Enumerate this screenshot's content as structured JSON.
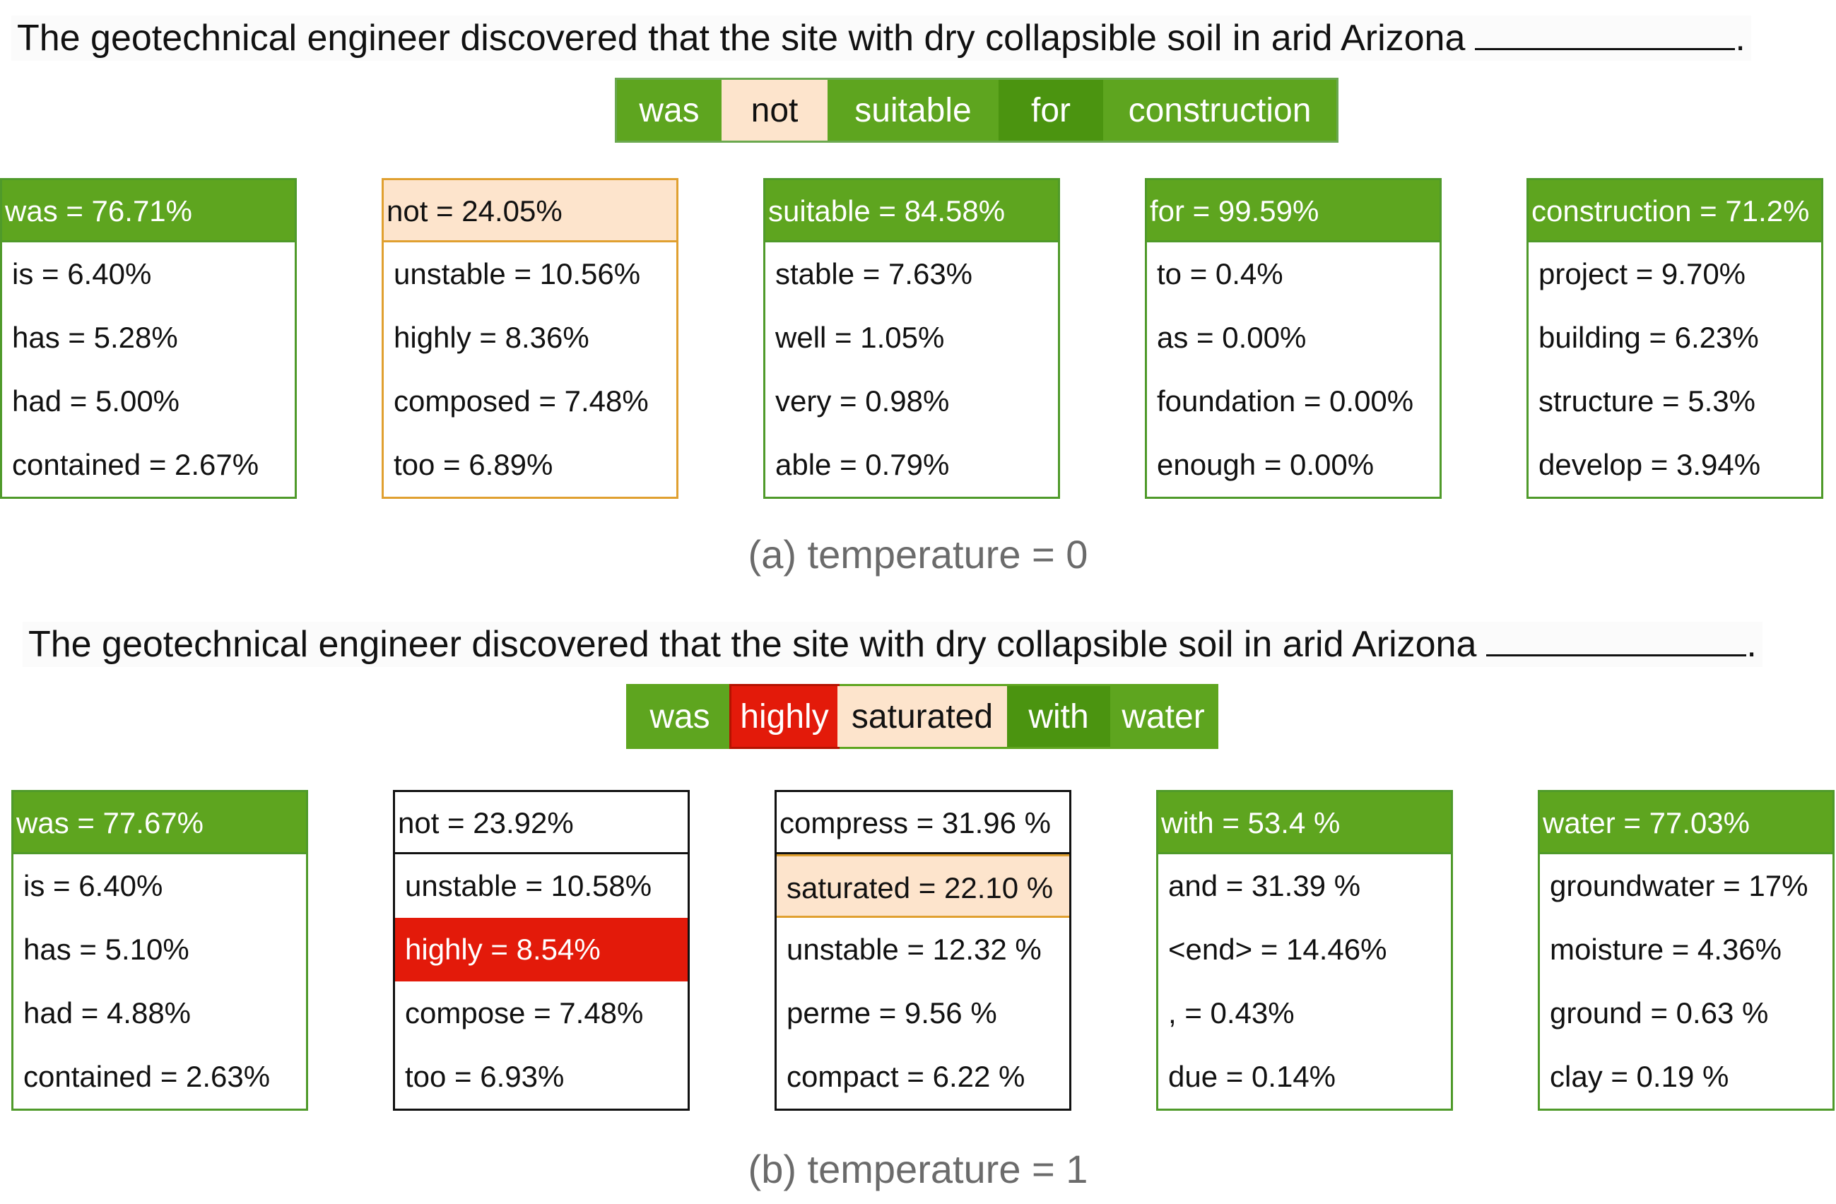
{
  "panel_a": {
    "prompt": "The geotechnical engineer discovered that the site with dry collapsible soil in arid Arizona",
    "suffix": ".",
    "tokens": [
      {
        "text": "was",
        "style": "g"
      },
      {
        "text": "not",
        "style": "o"
      },
      {
        "text": "suitable",
        "style": "g"
      },
      {
        "text": "for",
        "style": "dg"
      },
      {
        "text": "construction",
        "style": "g"
      }
    ],
    "boxes": [
      {
        "border": "green",
        "rows": [
          {
            "text": "was = 76.71%",
            "style": "g"
          },
          {
            "text": "is = 6.40%"
          },
          {
            "text": "has = 5.28%"
          },
          {
            "text": "had = 5.00%"
          },
          {
            "text": "contained = 2.67%"
          }
        ]
      },
      {
        "border": "orange",
        "rows": [
          {
            "text": "not = 24.05%",
            "style": "o"
          },
          {
            "text": "unstable = 10.56%"
          },
          {
            "text": "highly = 8.36%"
          },
          {
            "text": "composed = 7.48%"
          },
          {
            "text": "too = 6.89%"
          }
        ]
      },
      {
        "border": "green",
        "rows": [
          {
            "text": "suitable = 84.58%",
            "style": "g"
          },
          {
            "text": "stable = 7.63%"
          },
          {
            "text": "well = 1.05%"
          },
          {
            "text": "very = 0.98%"
          },
          {
            "text": "able = 0.79%"
          }
        ]
      },
      {
        "border": "green",
        "rows": [
          {
            "text": "for = 99.59%",
            "style": "g"
          },
          {
            "text": "to = 0.4%"
          },
          {
            "text": "as = 0.00%"
          },
          {
            "text": "foundation = 0.00%"
          },
          {
            "text": "enough = 0.00%"
          }
        ]
      },
      {
        "border": "green",
        "rows": [
          {
            "text": "construction = 71.2%",
            "style": "g"
          },
          {
            "text": "project = 9.70%"
          },
          {
            "text": "building = 6.23%"
          },
          {
            "text": "structure = 5.3%"
          },
          {
            "text": "develop = 3.94%"
          }
        ]
      }
    ],
    "caption": "(a) temperature = 0"
  },
  "panel_b": {
    "prompt": "The geotechnical engineer discovered that the site with dry collapsible soil in arid Arizona",
    "suffix": ".",
    "tokens": [
      {
        "text": "was",
        "style": "g"
      },
      {
        "text": "highly",
        "style": "r"
      },
      {
        "text": "saturated",
        "style": "o"
      },
      {
        "text": "with",
        "style": "dg"
      },
      {
        "text": "water",
        "style": "g"
      }
    ],
    "boxes": [
      {
        "border": "green",
        "rows": [
          {
            "text": "was = 77.67%",
            "style": "g"
          },
          {
            "text": "is = 6.40%"
          },
          {
            "text": "has = 5.10%"
          },
          {
            "text": "had = 4.88%"
          },
          {
            "text": "contained = 2.63%"
          }
        ]
      },
      {
        "border": "black",
        "rows": [
          {
            "text": "not = 23.92%",
            "style": "w"
          },
          {
            "text": "unstable = 10.58%"
          },
          {
            "text": "highly = 8.54%",
            "style": "r"
          },
          {
            "text": "compose = 7.48%"
          },
          {
            "text": "too = 6.93%"
          }
        ]
      },
      {
        "border": "black",
        "rows": [
          {
            "text": "compress = 31.96 %",
            "style": "w"
          },
          {
            "text": "saturated = 22.10 %",
            "style": "o"
          },
          {
            "text": "unstable = 12.32 %"
          },
          {
            "text": "perme = 9.56 %"
          },
          {
            "text": "compact = 6.22 %"
          }
        ]
      },
      {
        "border": "green",
        "rows": [
          {
            "text": "with = 53.4 %",
            "style": "g"
          },
          {
            "text": "and = 31.39 %"
          },
          {
            "text": "<end> = 14.46%"
          },
          {
            "text": ", = 0.43%"
          },
          {
            "text": "due = 0.14%"
          }
        ]
      },
      {
        "border": "green",
        "rows": [
          {
            "text": "water = 77.03%",
            "style": "g"
          },
          {
            "text": "groundwater = 17%"
          },
          {
            "text": "moisture = 4.36%"
          },
          {
            "text": "ground = 0.63 %"
          },
          {
            "text": "clay = 0.19 %"
          }
        ]
      }
    ],
    "caption": "(b) temperature = 1"
  },
  "colors": {
    "green": "#5ea51f",
    "dark_green": "#4b9410",
    "orange_fill": "#fde4cc",
    "orange_border": "#e0a030",
    "red": "#e31a0a",
    "green_border": "#4f9a2a",
    "black_border": "#111111"
  }
}
